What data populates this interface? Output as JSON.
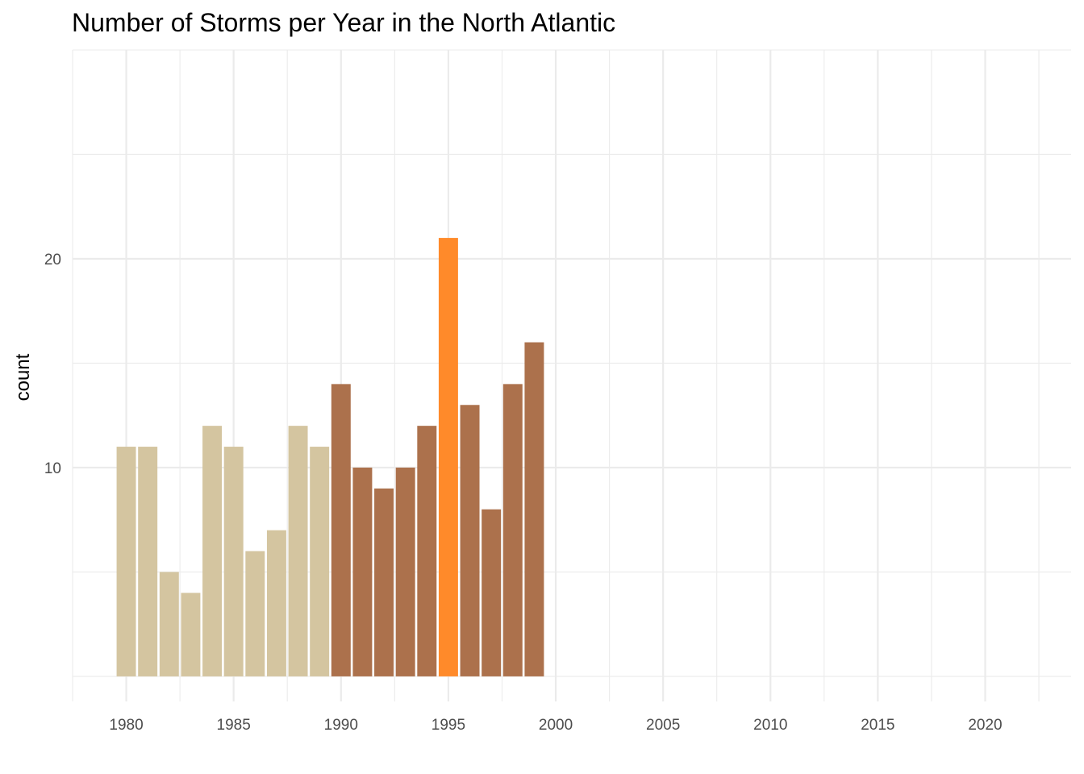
{
  "chart_data": {
    "type": "bar",
    "title": "Number of Storms per Year in the North Atlantic",
    "xlabel": "",
    "ylabel": "count",
    "xlim": [
      1977.5,
      2024.0
    ],
    "ylim": [
      -1.2,
      30.0
    ],
    "x_ticks": [
      1980,
      1985,
      1990,
      1995,
      2000,
      2005,
      2010,
      2015,
      2020
    ],
    "y_ticks": [
      10,
      20
    ],
    "y_minor_ticks": [
      0,
      5,
      15,
      25,
      30
    ],
    "grid": true,
    "legend": "none",
    "colors": {
      "1980s": "#d4c5a0",
      "1990s": "#ac714c",
      "highlight": "#ff8a2a"
    },
    "bars": [
      {
        "x": 1980,
        "value": 11,
        "group": "1980s"
      },
      {
        "x": 1981,
        "value": 11,
        "group": "1980s"
      },
      {
        "x": 1982,
        "value": 5,
        "group": "1980s"
      },
      {
        "x": 1983,
        "value": 4,
        "group": "1980s"
      },
      {
        "x": 1984,
        "value": 12,
        "group": "1980s"
      },
      {
        "x": 1985,
        "value": 11,
        "group": "1980s"
      },
      {
        "x": 1986,
        "value": 6,
        "group": "1980s"
      },
      {
        "x": 1987,
        "value": 7,
        "group": "1980s"
      },
      {
        "x": 1988,
        "value": 12,
        "group": "1980s"
      },
      {
        "x": 1989,
        "value": 11,
        "group": "1980s"
      },
      {
        "x": 1990,
        "value": 14,
        "group": "1990s"
      },
      {
        "x": 1991,
        "value": 10,
        "group": "1990s"
      },
      {
        "x": 1992,
        "value": 9,
        "group": "1990s"
      },
      {
        "x": 1993,
        "value": 10,
        "group": "1990s"
      },
      {
        "x": 1994,
        "value": 12,
        "group": "1990s"
      },
      {
        "x": 1995,
        "value": 21,
        "group": "highlight"
      },
      {
        "x": 1996,
        "value": 13,
        "group": "1990s"
      },
      {
        "x": 1997,
        "value": 8,
        "group": "1990s"
      },
      {
        "x": 1998,
        "value": 14,
        "group": "1990s"
      },
      {
        "x": 1999,
        "value": 16,
        "group": "1990s"
      }
    ]
  }
}
